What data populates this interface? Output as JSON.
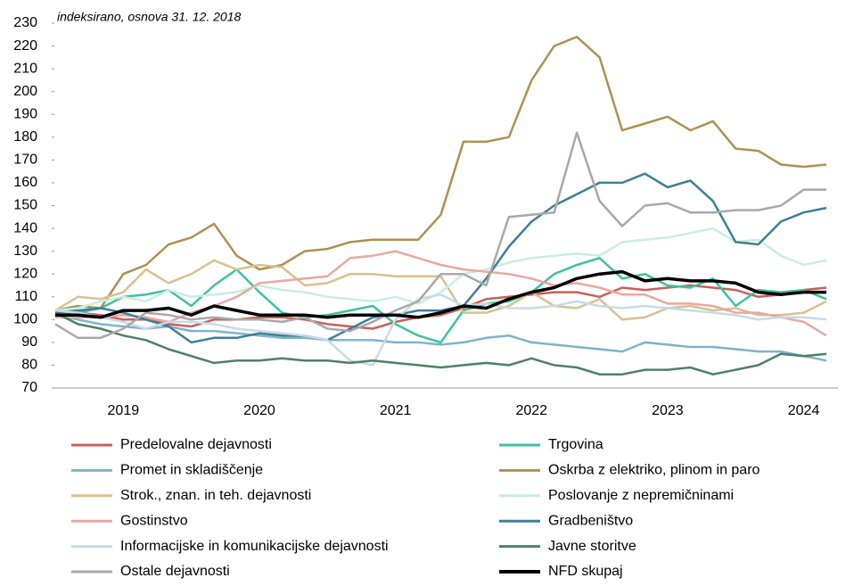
{
  "chart_data": {
    "type": "line",
    "subtitle": "indeksirano, osnova 31. 12. 2018",
    "categories": [
      null,
      null,
      null,
      "2019",
      null,
      null,
      null,
      null,
      null,
      "2020",
      null,
      null,
      null,
      null,
      null,
      "2021",
      null,
      null,
      null,
      null,
      null,
      "2022",
      null,
      null,
      null,
      null,
      null,
      "2023",
      null,
      null,
      null,
      null,
      null,
      "2024",
      null
    ],
    "ylim": [
      70,
      230
    ],
    "yticks": [
      70,
      80,
      90,
      100,
      110,
      120,
      130,
      140,
      150,
      160,
      170,
      180,
      190,
      200,
      210,
      220,
      230
    ],
    "series": [
      {
        "name": "Predelovalne dejavnosti",
        "color": "#c8605a",
        "values": [
          102,
          103,
          102,
          100,
          100,
          98,
          97,
          100,
          100,
          101,
          101,
          100,
          98,
          97,
          96,
          99,
          101,
          102,
          105,
          109,
          110,
          111,
          112,
          112,
          110,
          114,
          113,
          114,
          115,
          114,
          113,
          110,
          111,
          113,
          114
        ]
      },
      {
        "name": "Trgovina",
        "color": "#3cc39a",
        "values": [
          104,
          103,
          105,
          110,
          111,
          113,
          106,
          115,
          122,
          112,
          103,
          101,
          102,
          104,
          106,
          98,
          93,
          90,
          104,
          107,
          108,
          112,
          120,
          124,
          127,
          118,
          120,
          115,
          114,
          118,
          106,
          113,
          112,
          113,
          109
        ]
      },
      {
        "name": "Promet in skladiščenje",
        "color": "#7fb2cc",
        "values": [
          102,
          100,
          98,
          97,
          96,
          97,
          95,
          95,
          94,
          93,
          92,
          92,
          91,
          91,
          91,
          90,
          90,
          89,
          90,
          92,
          93,
          90,
          89,
          88,
          87,
          86,
          90,
          89,
          88,
          88,
          87,
          86,
          86,
          84,
          82
        ]
      },
      {
        "name": "Oskrba z elektriko, plinom in paro",
        "color": "#b09050",
        "values": [
          104,
          106,
          105,
          120,
          124,
          133,
          136,
          142,
          128,
          122,
          124,
          130,
          131,
          134,
          135,
          135,
          135,
          146,
          178,
          178,
          180,
          205,
          220,
          224,
          215,
          183,
          186,
          189,
          183,
          187,
          175,
          174,
          168,
          167,
          168
        ]
      },
      {
        "name": "Strok., znan. in teh. dejavnosti",
        "color": "#d8c090",
        "values": [
          104,
          110,
          109,
          112,
          122,
          116,
          120,
          126,
          122,
          124,
          123,
          115,
          116,
          120,
          120,
          119,
          119,
          119,
          103,
          103,
          106,
          112,
          106,
          105,
          109,
          100,
          101,
          105,
          106,
          104,
          105,
          102,
          102,
          103,
          108
        ]
      },
      {
        "name": "Poslovanje z nepremičninami",
        "color": "#c8eedd",
        "values": [
          104,
          105,
          108,
          110,
          108,
          113,
          110,
          111,
          112,
          115,
          113,
          112,
          110,
          109,
          108,
          110,
          107,
          112,
          120,
          122,
          125,
          127,
          128,
          129,
          128,
          134,
          135,
          136,
          138,
          140,
          134,
          135,
          128,
          124,
          126
        ]
      },
      {
        "name": "Gostinstvo",
        "color": "#e8a8a0",
        "values": [
          101,
          101,
          101,
          102,
          101,
          99,
          103,
          106,
          110,
          116,
          117,
          118,
          119,
          127,
          128,
          130,
          127,
          124,
          122,
          121,
          120,
          118,
          115,
          116,
          114,
          111,
          111,
          107,
          107,
          106,
          103,
          103,
          101,
          99,
          93
        ]
      },
      {
        "name": "Gradbeništvo",
        "color": "#3d7f9a",
        "values": [
          103,
          104,
          105,
          103,
          100,
          97,
          90,
          92,
          92,
          94,
          93,
          93,
          91,
          96,
          101,
          102,
          104,
          104,
          106,
          118,
          132,
          143,
          150,
          155,
          160,
          160,
          164,
          158,
          161,
          152,
          134,
          133,
          143,
          147,
          149
        ]
      },
      {
        "name": "Informacijske in komunikacijske dejavnosti",
        "color": "#c5dbe8",
        "values": [
          104,
          103,
          101,
          99,
          96,
          99,
          99,
          98,
          96,
          95,
          94,
          93,
          91,
          82,
          80,
          100,
          109,
          111,
          106,
          107,
          105,
          105,
          106,
          108,
          106,
          105,
          106,
          105,
          104,
          103,
          102,
          100,
          101,
          101,
          100
        ]
      },
      {
        "name": "Javne storitve",
        "color": "#4f7f68",
        "values": [
          103,
          98,
          96,
          93,
          91,
          87,
          84,
          81,
          82,
          82,
          83,
          82,
          82,
          81,
          82,
          81,
          80,
          79,
          80,
          81,
          80,
          83,
          80,
          79,
          76,
          76,
          78,
          78,
          79,
          76,
          78,
          80,
          85,
          84,
          85
        ]
      },
      {
        "name": "Ostale dejavnosti",
        "color": "#a8a8a8",
        "values": [
          98,
          92,
          92,
          96,
          103,
          102,
          100,
          101,
          100,
          100,
          99,
          101,
          96,
          95,
          99,
          104,
          108,
          120,
          120,
          115,
          145,
          146,
          147,
          182,
          152,
          141,
          150,
          151,
          147,
          147,
          148,
          148,
          150,
          157,
          157
        ]
      },
      {
        "name": "NFD skupaj",
        "color": "#000000",
        "values": [
          102,
          102,
          101,
          104,
          104,
          105,
          102,
          106,
          104,
          102,
          102,
          102,
          101,
          102,
          102,
          102,
          101,
          103,
          106,
          105,
          109,
          112,
          114,
          118,
          120,
          121,
          117,
          118,
          117,
          117,
          116,
          112,
          111,
          112,
          112
        ]
      }
    ]
  }
}
